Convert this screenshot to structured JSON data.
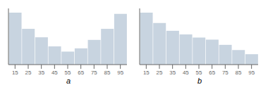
{
  "chart_data": [
    {
      "type": "bar",
      "title": "a",
      "categories": [
        "15",
        "25",
        "35",
        "45",
        "55",
        "65",
        "75",
        "85",
        "95"
      ],
      "values": [
        8,
        5.5,
        4.2,
        2.8,
        2.0,
        2.5,
        3.8,
        5.5,
        7.8
      ],
      "color": "#c8d4e0",
      "ylim": [
        0,
        8.64
      ],
      "tick_labels": "x",
      "grid": false
    },
    {
      "type": "bar",
      "title": "b",
      "categories": [
        "15",
        "25",
        "35",
        "45",
        "55",
        "65",
        "75",
        "85",
        "95"
      ],
      "values": [
        10,
        8.0,
        6.5,
        5.8,
        5.2,
        4.8,
        3.8,
        2.8,
        2.0
      ],
      "color": "#c8d4e0",
      "ylim": [
        0,
        10.8
      ],
      "tick_labels": "x",
      "grid": false
    }
  ]
}
